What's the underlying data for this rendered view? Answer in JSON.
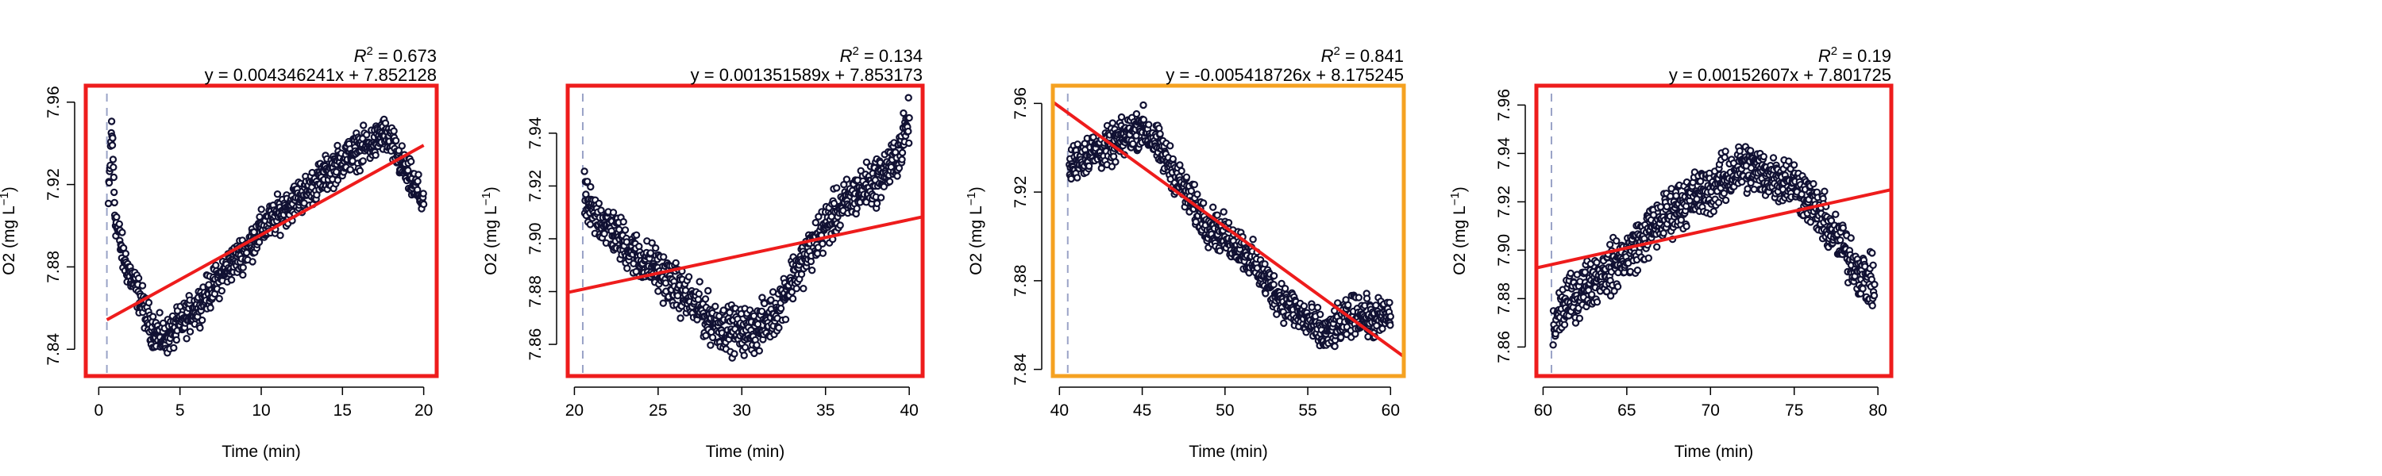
{
  "chart_data": [
    {
      "type": "scatter",
      "xlabel": "Time (min)",
      "ylabel_base": "O2 (mg L",
      "ylabel_sup": "−1",
      "ylabel_close": ")",
      "r2_value": "0.673",
      "equation": "y = 0.004346241x + 7.852128",
      "frame_color": "#ee1c1c",
      "xlim": [
        -0.8,
        20.8
      ],
      "ylim": [
        7.827,
        7.968
      ],
      "xticks": [
        0,
        5,
        10,
        15,
        20
      ],
      "yticks": [
        "7.84",
        "7.88",
        "7.92",
        "7.96"
      ],
      "marker_x": 0.5,
      "slope": 0.004346241,
      "intercept": 7.852128,
      "x_range": [
        0.5,
        20
      ],
      "series": [
        {
          "x": [
            0.6,
            0.8,
            1,
            1.5,
            2,
            2.5,
            3,
            3.5,
            4,
            4.5,
            5,
            6,
            7,
            8,
            9,
            10,
            11,
            12,
            13,
            14,
            15,
            16,
            17,
            17.5,
            18,
            18.5,
            19,
            19.5,
            20
          ],
          "y": [
            7.91,
            7.95,
            7.905,
            7.885,
            7.875,
            7.866,
            7.855,
            7.848,
            7.845,
            7.848,
            7.852,
            7.86,
            7.87,
            7.88,
            7.888,
            7.898,
            7.905,
            7.912,
            7.918,
            7.925,
            7.932,
            7.937,
            7.94,
            7.945,
            7.94,
            7.932,
            7.925,
            7.918,
            7.912
          ],
          "y_spread": 0.006
        }
      ]
    },
    {
      "type": "scatter",
      "xlabel": "Time (min)",
      "ylabel_base": "O2 (mg L",
      "ylabel_sup": "−1",
      "ylabel_close": ")",
      "r2_value": "0.134",
      "equation": "y = 0.001351589x + 7.853173",
      "frame_color": "#ee1c1c",
      "xlim": [
        19.6,
        40.8
      ],
      "ylim": [
        7.848,
        7.958
      ],
      "xticks": [
        20,
        25,
        30,
        35,
        40
      ],
      "yticks": [
        "7.86",
        "7.88",
        "7.90",
        "7.92",
        "7.94"
      ],
      "marker_x": 20.5,
      "slope": 0.001351589,
      "intercept": 7.853173,
      "x_range": [
        19.6,
        40.8
      ],
      "series": [
        {
          "x": [
            20.6,
            21,
            22,
            23,
            24,
            25,
            26,
            27,
            28,
            29,
            30,
            31,
            32,
            33,
            34,
            35,
            36,
            37,
            38,
            39,
            39.5,
            40
          ],
          "y": [
            7.915,
            7.91,
            7.905,
            7.898,
            7.892,
            7.888,
            7.882,
            7.876,
            7.87,
            7.866,
            7.865,
            7.866,
            7.872,
            7.885,
            7.895,
            7.905,
            7.912,
            7.918,
            7.922,
            7.928,
            7.935,
            7.945
          ],
          "y_spread": 0.006
        }
      ]
    },
    {
      "type": "scatter",
      "xlabel": "Time (min)",
      "ylabel_base": "O2 (mg L",
      "ylabel_sup": "−1",
      "ylabel_close": ")",
      "r2_value": "0.841",
      "equation": "y = -0.005418726x + 8.175245",
      "frame_color": "#f5a221",
      "xlim": [
        39.6,
        60.8
      ],
      "ylim": [
        7.837,
        7.968
      ],
      "xticks": [
        40,
        45,
        50,
        55,
        60
      ],
      "yticks": [
        "7.84",
        "7.88",
        "7.92",
        "7.96"
      ],
      "marker_x": 40.5,
      "slope": -0.005418726,
      "intercept": 8.175245,
      "x_range": [
        39.6,
        60.8
      ],
      "series": [
        {
          "x": [
            40.6,
            41,
            42,
            43,
            44,
            45,
            46,
            47,
            48,
            49,
            50,
            51,
            52,
            53,
            54,
            55,
            56,
            57,
            58,
            59,
            60
          ],
          "y": [
            7.93,
            7.935,
            7.938,
            7.94,
            7.945,
            7.95,
            7.94,
            7.928,
            7.915,
            7.905,
            7.9,
            7.895,
            7.885,
            7.875,
            7.868,
            7.862,
            7.855,
            7.86,
            7.866,
            7.862,
            7.865
          ],
          "y_spread": 0.006
        }
      ]
    },
    {
      "type": "scatter",
      "xlabel": "Time (min)",
      "ylabel_base": "O2 (mg L",
      "ylabel_sup": "−1",
      "ylabel_close": ")",
      "r2_value": "0.19",
      "equation": "y = 0.00152607x + 7.801725",
      "frame_color": "#ee1c1c",
      "xlim": [
        59.6,
        80.8
      ],
      "ylim": [
        7.848,
        7.968
      ],
      "xticks": [
        60,
        65,
        70,
        75,
        80
      ],
      "yticks": [
        "7.86",
        "7.88",
        "7.90",
        "7.92",
        "7.94",
        "7.96"
      ],
      "marker_x": 60.5,
      "slope": 0.00152607,
      "intercept": 7.801725,
      "x_range": [
        59.6,
        80.8
      ],
      "series": [
        {
          "x": [
            60.6,
            61,
            62,
            63,
            64,
            65,
            66,
            67,
            68,
            69,
            70,
            71,
            72,
            73,
            74,
            75,
            76,
            77,
            78,
            79,
            79.8
          ],
          "y": [
            7.865,
            7.875,
            7.882,
            7.888,
            7.892,
            7.898,
            7.905,
            7.912,
            7.918,
            7.922,
            7.925,
            7.93,
            7.935,
            7.932,
            7.93,
            7.928,
            7.92,
            7.91,
            7.9,
            7.89,
            7.885
          ],
          "y_spread": 0.007
        }
      ]
    }
  ]
}
